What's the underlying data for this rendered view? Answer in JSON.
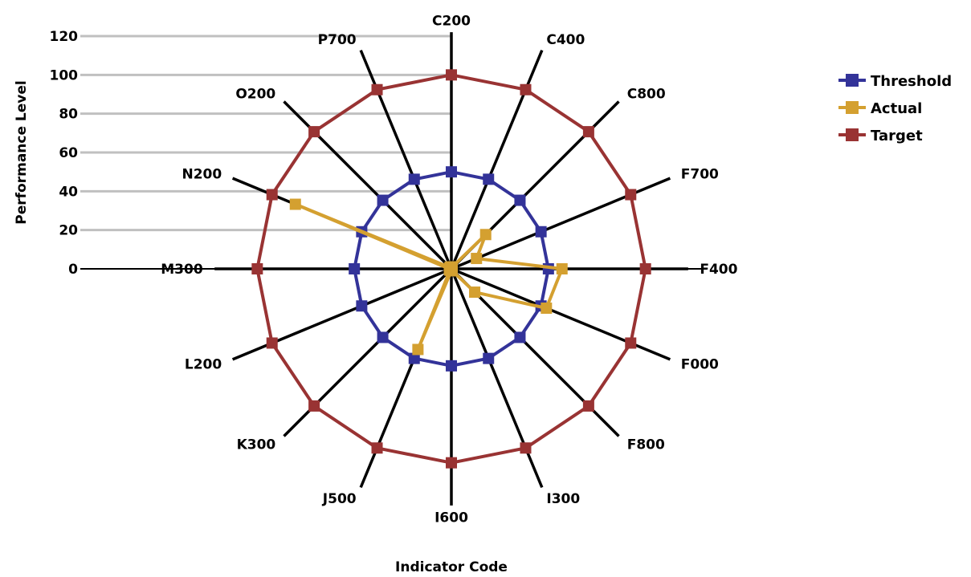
{
  "chart_data": {
    "type": "radar",
    "categories": [
      "C200",
      "C400",
      "C800",
      "F700",
      "F400",
      "F000",
      "F800",
      "I300",
      "I600",
      "J500",
      "K300",
      "L200",
      "M300",
      "N200",
      "O200",
      "P700"
    ],
    "series": [
      {
        "name": "Threshold",
        "color": "#333399",
        "values": [
          50,
          50,
          50,
          50,
          50,
          50,
          50,
          50,
          50,
          50,
          50,
          50,
          50,
          50,
          50,
          50
        ]
      },
      {
        "name": "Actual",
        "color": "#d4a030",
        "values": [
          1,
          1,
          25,
          14,
          57,
          53,
          17,
          1,
          1,
          45,
          1,
          1,
          1,
          87,
          1,
          1
        ]
      },
      {
        "name": "Target",
        "color": "#993333",
        "values": [
          100,
          100,
          100,
          100,
          100,
          100,
          100,
          100,
          100,
          100,
          100,
          100,
          100,
          100,
          100,
          100
        ]
      }
    ],
    "ylabel": "Performance Level",
    "xlabel": "Indicator Code",
    "ylim": [
      0,
      120
    ],
    "ticks": [
      0,
      20,
      40,
      60,
      80,
      100,
      120
    ],
    "legend_position": "right"
  }
}
